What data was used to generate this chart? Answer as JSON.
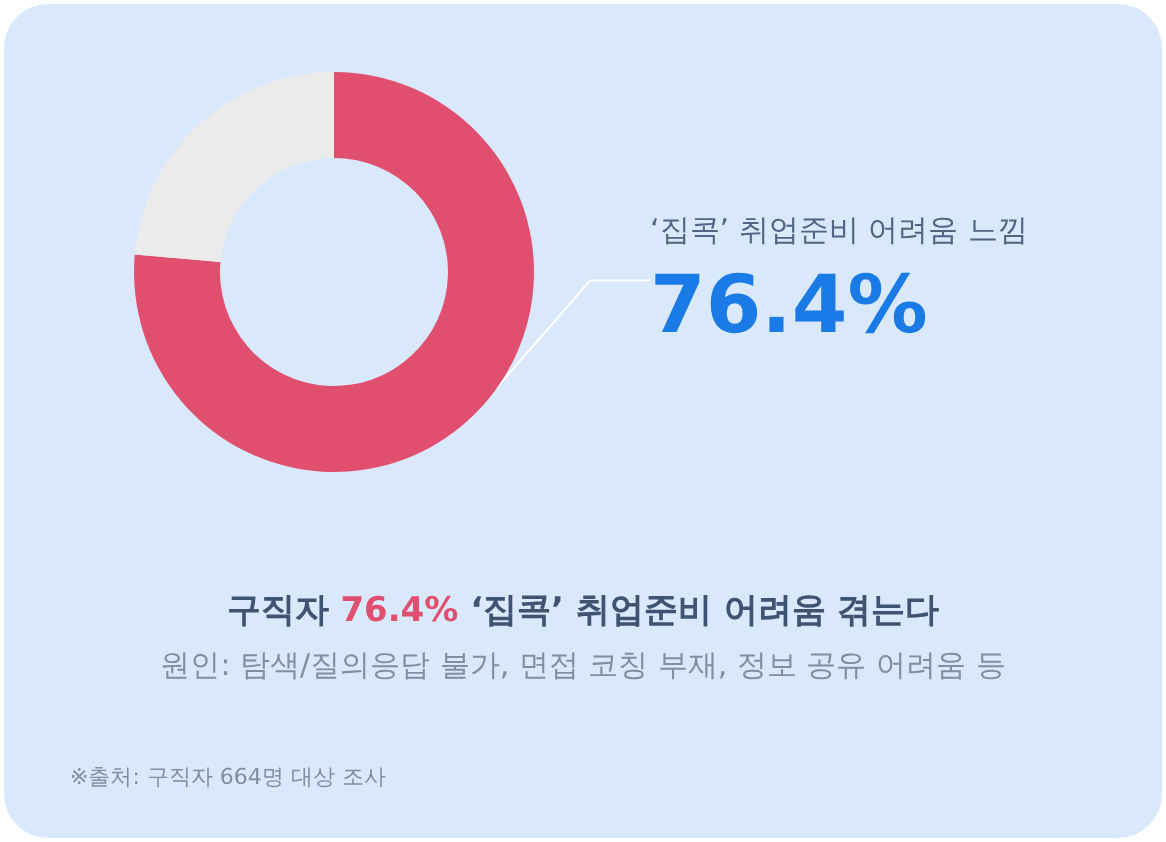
{
  "chart_data": {
    "type": "donut",
    "title": "구직자 76.4% ‘집콕’ 취업준비 어려움 겪는다",
    "subtitle": "원인: 탐색/질의응답 불가, 면접 코칭 부재, 정보 공유 어려움 등",
    "categories": [
      "‘집콕’ 취업준비 어려움 느낌",
      null
    ],
    "values": [
      76.4,
      23.6
    ],
    "colors": [
      "#e0506e",
      "#ebebeb"
    ],
    "value_labels": [
      "76.4%",
      null
    ],
    "annotations": [
      "※출처: 구직자 664명 대상 조사"
    ],
    "legend": false
  }
}
